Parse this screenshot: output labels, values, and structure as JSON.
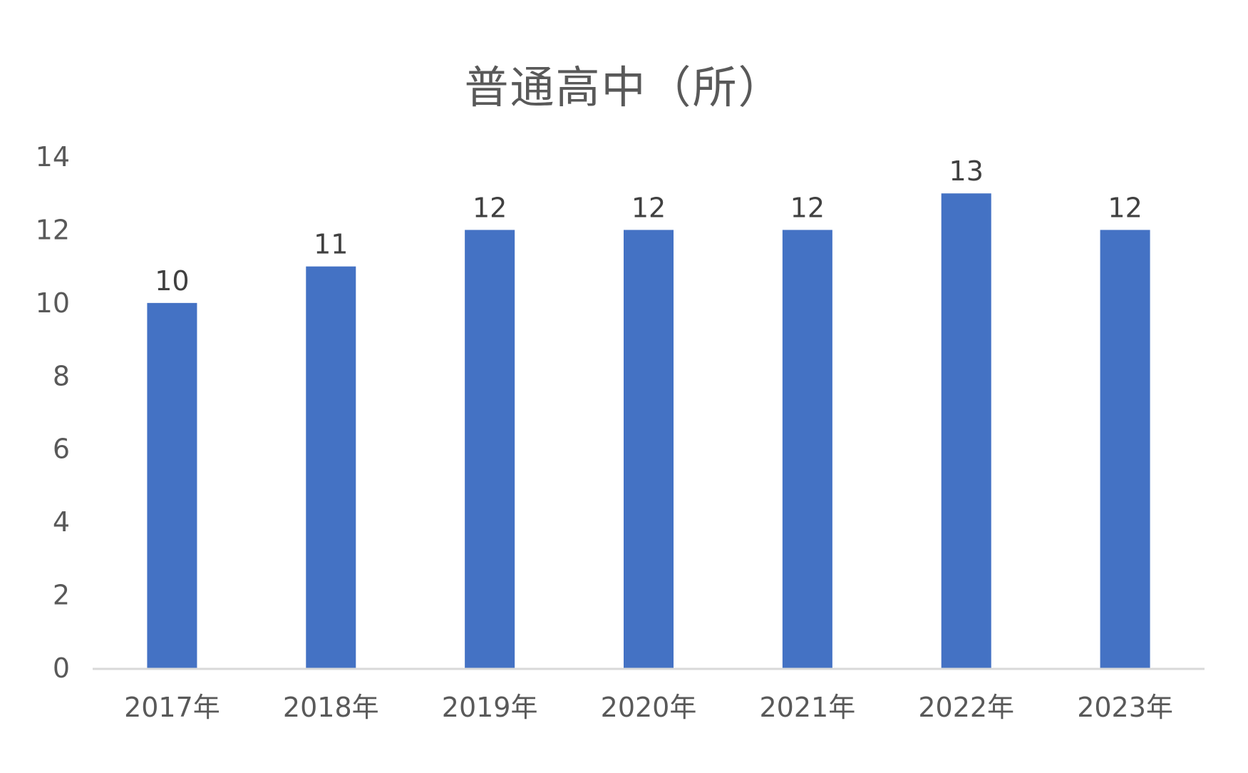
{
  "chart_data": {
    "type": "bar",
    "title": "普通高中（所）",
    "xlabel": "",
    "ylabel": "",
    "categories": [
      "2017年",
      "2018年",
      "2019年",
      "2020年",
      "2021年",
      "2022年",
      "2023年"
    ],
    "series": [
      {
        "values": [
          10,
          11,
          12,
          12,
          12,
          13,
          12
        ],
        "color": "#4472C4"
      }
    ],
    "ylim": [
      0,
      14
    ],
    "yticks": [
      0,
      2,
      4,
      6,
      8,
      10,
      12,
      14
    ],
    "data_labels": true,
    "grid": false,
    "legend": "none",
    "colors": {
      "bar": "#4472C4",
      "axis": "#D9D9D9",
      "text": "#595959"
    }
  }
}
